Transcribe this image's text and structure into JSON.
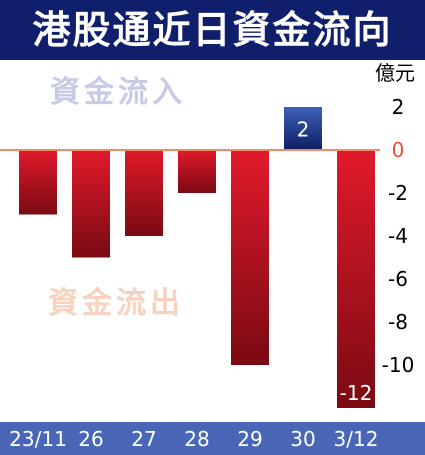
{
  "header": {
    "title": "港股通近日資金流向"
  },
  "watermarks": {
    "inflow": "資金流入",
    "outflow": "資金流出"
  },
  "colors": {
    "title_bg": "#0f1f6b",
    "negative_bar_top": "#e11a2b",
    "negative_bar_bottom": "#7a0a12",
    "positive_bar_top": "#3c63b8",
    "positive_bar_bottom": "#0d1f63",
    "zero_line": "#ef8b66",
    "xaxis_band": "#4a66b6",
    "inflow_watermark": "#c7cbe6",
    "outflow_watermark": "#f7d2bf"
  },
  "chart_data": {
    "type": "bar",
    "title": "港股通近日資金流向",
    "ylabel": "億元",
    "xlabel": "",
    "categories": [
      "23/11",
      "26",
      "27",
      "28",
      "29",
      "30",
      "3/12"
    ],
    "values": [
      -3,
      -5,
      -4,
      -2,
      -10,
      2,
      -12
    ],
    "value_labels": [
      "",
      "",
      "",
      "",
      "",
      "2",
      "-12"
    ],
    "ylim": [
      -12,
      2
    ],
    "yticks": [
      "2",
      "0",
      "-2",
      "-4",
      "-6",
      "-8",
      "-10"
    ],
    "grid": false,
    "legend": "none"
  }
}
